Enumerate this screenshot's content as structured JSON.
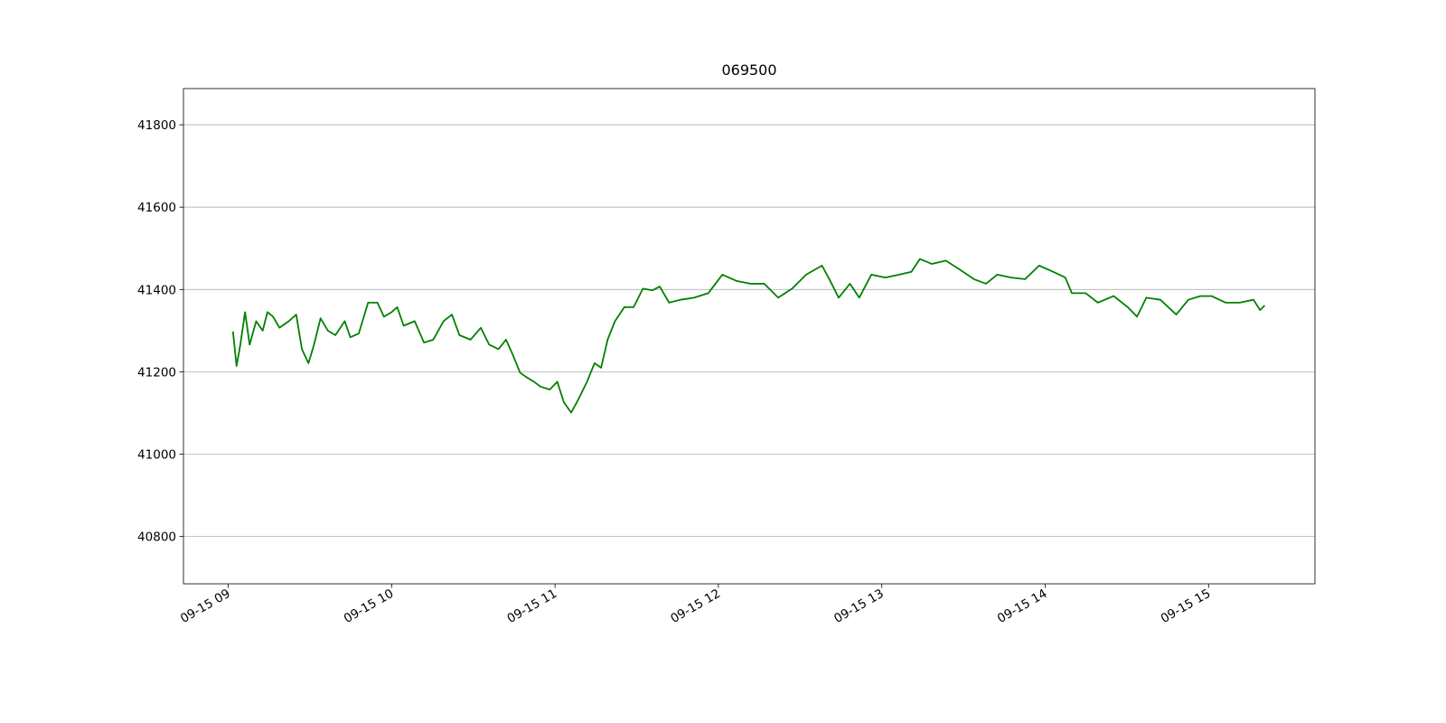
{
  "chart_data": {
    "type": "line",
    "title": "069500",
    "x": [
      9.029,
      9.051,
      9.074,
      9.103,
      9.131,
      9.171,
      9.211,
      9.24,
      9.274,
      9.314,
      9.371,
      9.416,
      9.451,
      9.491,
      9.525,
      9.565,
      9.61,
      9.656,
      9.713,
      9.747,
      9.799,
      9.856,
      9.913,
      9.953,
      10.0,
      10.034,
      10.074,
      10.141,
      10.198,
      10.255,
      10.318,
      10.369,
      10.415,
      10.483,
      10.546,
      10.597,
      10.654,
      10.7,
      10.74,
      10.786,
      10.825,
      10.871,
      10.911,
      10.968,
      11.014,
      11.054,
      11.099,
      11.139,
      11.196,
      11.242,
      11.282,
      11.322,
      11.367,
      11.424,
      11.481,
      11.538,
      11.596,
      11.641,
      11.698,
      11.767,
      11.852,
      11.938,
      12.024,
      12.109,
      12.195,
      12.28,
      12.366,
      12.451,
      12.537,
      12.634,
      12.679,
      12.736,
      12.805,
      12.862,
      12.936,
      13.022,
      13.107,
      13.181,
      13.233,
      13.307,
      13.392,
      13.478,
      13.564,
      13.638,
      13.706,
      13.792,
      13.877,
      13.963,
      14.048,
      14.123,
      14.163,
      14.248,
      14.322,
      14.419,
      14.505,
      14.562,
      14.619,
      14.705,
      14.802,
      14.876,
      14.95,
      15.018,
      15.104,
      15.19,
      15.275,
      15.315,
      15.343
    ],
    "series": [
      {
        "color": "#008000",
        "values": [
          41298,
          41214,
          41266,
          41345,
          41266,
          41323,
          41300,
          41345,
          41334,
          41307,
          41323,
          41339,
          41255,
          41221,
          41266,
          41330,
          41300,
          41289,
          41323,
          41284,
          41293,
          41368,
          41368,
          41334,
          41345,
          41357,
          41312,
          41323,
          41271,
          41278,
          41323,
          41339,
          41289,
          41278,
          41307,
          41266,
          41255,
          41278,
          41243,
          41198,
          41187,
          41176,
          41164,
          41157,
          41176,
          41126,
          41101,
          41130,
          41176,
          41221,
          41210,
          41278,
          41323,
          41357,
          41357,
          41402,
          41398,
          41407,
          41368,
          41375,
          41380,
          41391,
          41436,
          41421,
          41414,
          41414,
          41380,
          41402,
          41436,
          41458,
          41425,
          41380,
          41414,
          41380,
          41436,
          41429,
          41436,
          41443,
          41474,
          41462,
          41470,
          41448,
          41425,
          41414,
          41436,
          41429,
          41425,
          41458,
          41443,
          41429,
          41391,
          41391,
          41368,
          41384,
          41357,
          41334,
          41380,
          41375,
          41339,
          41375,
          41384,
          41384,
          41368,
          41368,
          41375,
          41350,
          41361
        ]
      }
    ],
    "xlim": [
      8.726,
      15.651
    ],
    "xticks": [
      {
        "value": 9,
        "label": "09-15 09"
      },
      {
        "value": 10,
        "label": "09-15 10"
      },
      {
        "value": 11,
        "label": "09-15 11"
      },
      {
        "value": 12,
        "label": "09-15 12"
      },
      {
        "value": 13,
        "label": "09-15 13"
      },
      {
        "value": 14,
        "label": "09-15 14"
      },
      {
        "value": 15,
        "label": "09-15 15"
      }
    ],
    "ylim": [
      40685,
      41888
    ],
    "yticks": [
      40800,
      41000,
      41200,
      41400,
      41600,
      41800
    ],
    "grid": "y"
  }
}
